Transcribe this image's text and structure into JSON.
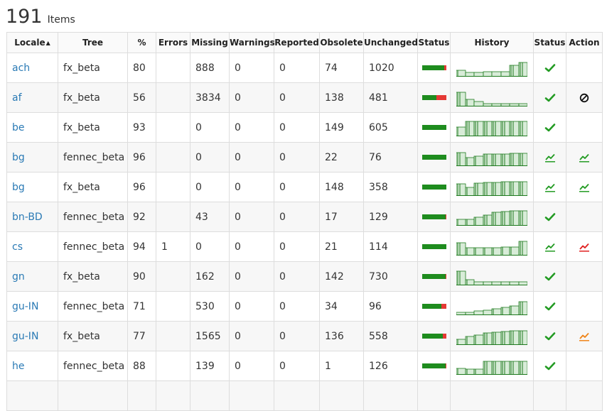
{
  "summary": {
    "count": "191",
    "label": "Items"
  },
  "columns": [
    "Locale",
    "Tree",
    "%",
    "Errors",
    "Missing",
    "Warnings",
    "Reported",
    "Obsolete",
    "Unchanged",
    "Status",
    "History",
    "Status",
    "Action"
  ],
  "colors": {
    "link": "#2a7ab5",
    "good": "#1e8c1e",
    "missing": "#e53935",
    "chart_fill": "#d8ecd8",
    "chart_line": "#1e7a1e",
    "trend_green": "#239b23",
    "trend_red": "#e02020",
    "trend_orange": "#ef8418"
  },
  "rows": [
    {
      "locale": "ach",
      "tree": "fx_beta",
      "pct": "80",
      "errors": "",
      "missing": "888",
      "warnings": "0",
      "reported": "0",
      "obsolete": "74",
      "unchanged": "1020",
      "status_good": 0.8,
      "status_missing": 0.1,
      "history": [
        0.4,
        0.28,
        0.28,
        0.3,
        0.3,
        0.3,
        0.72,
        0.9
      ],
      "status_icon": "check-icon",
      "action_icon": ""
    },
    {
      "locale": "af",
      "tree": "fx_beta",
      "pct": "56",
      "errors": "",
      "missing": "3834",
      "warnings": "0",
      "reported": "0",
      "obsolete": "138",
      "unchanged": "481",
      "status_good": 0.56,
      "status_missing": 0.4,
      "history": [
        0.9,
        0.45,
        0.3,
        0.2,
        0.2,
        0.2,
        0.2,
        0.2
      ],
      "status_icon": "check-icon",
      "action_icon": "no-entry-icon"
    },
    {
      "locale": "be",
      "tree": "fx_beta",
      "pct": "93",
      "errors": "",
      "missing": "0",
      "warnings": "0",
      "reported": "0",
      "obsolete": "149",
      "unchanged": "605",
      "status_good": 0.93,
      "status_missing": 0.0,
      "history": [
        0.6,
        0.95,
        0.95,
        0.95,
        0.95,
        0.95,
        0.95,
        0.95
      ],
      "status_icon": "check-icon",
      "action_icon": ""
    },
    {
      "locale": "bg",
      "tree": "fennec_beta",
      "pct": "96",
      "errors": "",
      "missing": "0",
      "warnings": "0",
      "reported": "0",
      "obsolete": "22",
      "unchanged": "76",
      "status_good": 0.96,
      "status_missing": 0.0,
      "history": [
        0.85,
        0.55,
        0.65,
        0.75,
        0.75,
        0.78,
        0.8,
        0.8
      ],
      "status_icon": "trend-up-green-icon",
      "action_icon": "trend-up-green-icon"
    },
    {
      "locale": "bg",
      "tree": "fx_beta",
      "pct": "96",
      "errors": "",
      "missing": "0",
      "warnings": "0",
      "reported": "0",
      "obsolete": "148",
      "unchanged": "358",
      "status_good": 0.96,
      "status_missing": 0.0,
      "history": [
        0.75,
        0.55,
        0.8,
        0.85,
        0.88,
        0.9,
        0.9,
        0.92
      ],
      "status_icon": "trend-up-green-icon",
      "action_icon": "trend-up-green-icon"
    },
    {
      "locale": "bn-BD",
      "tree": "fennec_beta",
      "pct": "92",
      "errors": "",
      "missing": "43",
      "warnings": "0",
      "reported": "0",
      "obsolete": "17",
      "unchanged": "129",
      "status_good": 0.92,
      "status_missing": 0.04,
      "history": [
        0.4,
        0.4,
        0.55,
        0.7,
        0.85,
        0.9,
        0.95,
        0.95
      ],
      "status_icon": "check-icon",
      "action_icon": ""
    },
    {
      "locale": "cs",
      "tree": "fennec_beta",
      "pct": "94",
      "errors": "1",
      "missing": "0",
      "warnings": "0",
      "reported": "0",
      "obsolete": "21",
      "unchanged": "114",
      "status_good": 0.94,
      "status_missing": 0.0,
      "history": [
        0.8,
        0.5,
        0.5,
        0.5,
        0.5,
        0.55,
        0.55,
        0.9
      ],
      "status_icon": "trend-up-green-icon",
      "action_icon": "trend-up-red-icon"
    },
    {
      "locale": "gn",
      "tree": "fx_beta",
      "pct": "90",
      "errors": "",
      "missing": "162",
      "warnings": "0",
      "reported": "0",
      "obsolete": "142",
      "unchanged": "730",
      "status_good": 0.9,
      "status_missing": 0.04,
      "history": [
        0.9,
        0.35,
        0.22,
        0.22,
        0.22,
        0.22,
        0.22,
        0.22
      ],
      "status_icon": "check-icon",
      "action_icon": ""
    },
    {
      "locale": "gu-IN",
      "tree": "fennec_beta",
      "pct": "71",
      "errors": "",
      "missing": "530",
      "warnings": "0",
      "reported": "0",
      "obsolete": "34",
      "unchanged": "96",
      "status_good": 0.71,
      "status_missing": 0.22,
      "history": [
        0.2,
        0.2,
        0.25,
        0.3,
        0.4,
        0.5,
        0.6,
        0.85
      ],
      "status_icon": "check-icon",
      "action_icon": ""
    },
    {
      "locale": "gu-IN",
      "tree": "fx_beta",
      "pct": "77",
      "errors": "",
      "missing": "1565",
      "warnings": "0",
      "reported": "0",
      "obsolete": "136",
      "unchanged": "558",
      "status_good": 0.77,
      "status_missing": 0.16,
      "history": [
        0.35,
        0.55,
        0.65,
        0.75,
        0.8,
        0.85,
        0.9,
        0.92
      ],
      "status_icon": "check-icon",
      "action_icon": "trend-up-orange-icon"
    },
    {
      "locale": "he",
      "tree": "fennec_beta",
      "pct": "88",
      "errors": "",
      "missing": "139",
      "warnings": "0",
      "reported": "0",
      "obsolete": "1",
      "unchanged": "126",
      "status_good": 0.88,
      "status_missing": 0.04,
      "history": [
        0.4,
        0.35,
        0.35,
        0.85,
        0.85,
        0.85,
        0.85,
        0.85
      ],
      "status_icon": "check-icon",
      "action_icon": ""
    },
    {
      "locale": "",
      "tree": "",
      "pct": "",
      "errors": "",
      "missing": "",
      "warnings": "",
      "reported": "",
      "obsolete": "",
      "unchanged": "",
      "status_good": 0,
      "status_missing": 0,
      "history": [],
      "status_icon": "",
      "action_icon": ""
    }
  ]
}
